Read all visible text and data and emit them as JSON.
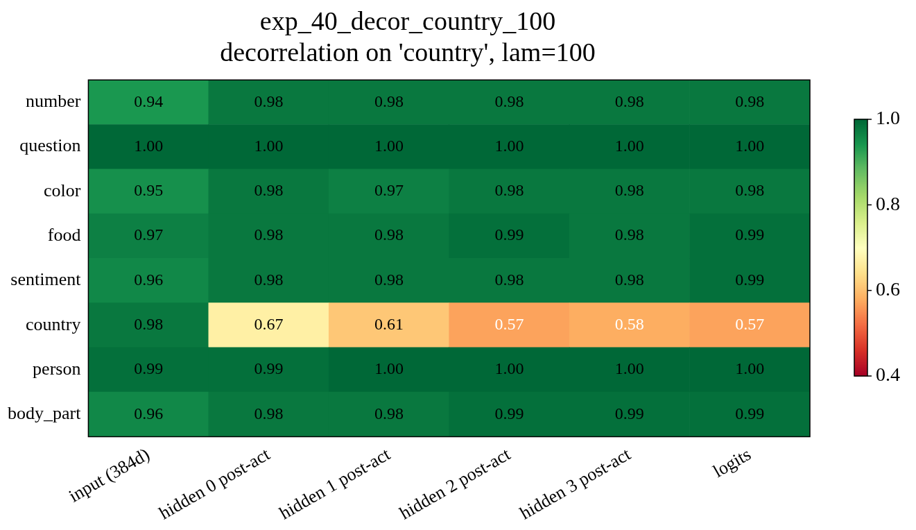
{
  "chart_data": {
    "type": "heatmap",
    "title": "exp_40_decor_country_100",
    "subtitle": "decorrelation on 'country', lam=100",
    "categories": [
      "input (384d)",
      "hidden 0 post-act",
      "hidden 1 post-act",
      "hidden 2 post-act",
      "hidden 3 post-act",
      "logits"
    ],
    "y_categories": [
      "number",
      "question",
      "color",
      "food",
      "sentiment",
      "country",
      "person",
      "body_part"
    ],
    "cells": [
      [
        0.94,
        0.98,
        0.98,
        0.98,
        0.98,
        0.98
      ],
      [
        1.0,
        1.0,
        1.0,
        1.0,
        1.0,
        1.0
      ],
      [
        0.95,
        0.98,
        0.97,
        0.98,
        0.98,
        0.98
      ],
      [
        0.97,
        0.98,
        0.98,
        0.99,
        0.98,
        0.99
      ],
      [
        0.96,
        0.98,
        0.98,
        0.98,
        0.98,
        0.99
      ],
      [
        0.98,
        0.67,
        0.61,
        0.57,
        0.58,
        0.57
      ],
      [
        0.99,
        0.99,
        1.0,
        1.0,
        1.0,
        1.0
      ],
      [
        0.96,
        0.98,
        0.98,
        0.99,
        0.99,
        0.99
      ]
    ],
    "cell_labels": [
      [
        "0.94",
        "0.98",
        "0.98",
        "0.98",
        "0.98",
        "0.98"
      ],
      [
        "1.00",
        "1.00",
        "1.00",
        "1.00",
        "1.00",
        "1.00"
      ],
      [
        "0.95",
        "0.98",
        "0.97",
        "0.98",
        "0.98",
        "0.98"
      ],
      [
        "0.97",
        "0.98",
        "0.98",
        "0.99",
        "0.98",
        "0.99"
      ],
      [
        "0.96",
        "0.98",
        "0.98",
        "0.98",
        "0.98",
        "0.99"
      ],
      [
        "0.98",
        "0.67",
        "0.61",
        "0.57",
        "0.58",
        "0.57"
      ],
      [
        "0.99",
        "0.99",
        "1.00",
        "1.00",
        "1.00",
        "1.00"
      ],
      [
        "0.96",
        "0.98",
        "0.98",
        "0.99",
        "0.99",
        "0.99"
      ]
    ],
    "clim": [
      0.4,
      1.0
    ],
    "cticks": [
      0.4,
      0.6,
      0.8,
      {
        "value": 1.0,
        "label": "1.0"
      }
    ]
  }
}
